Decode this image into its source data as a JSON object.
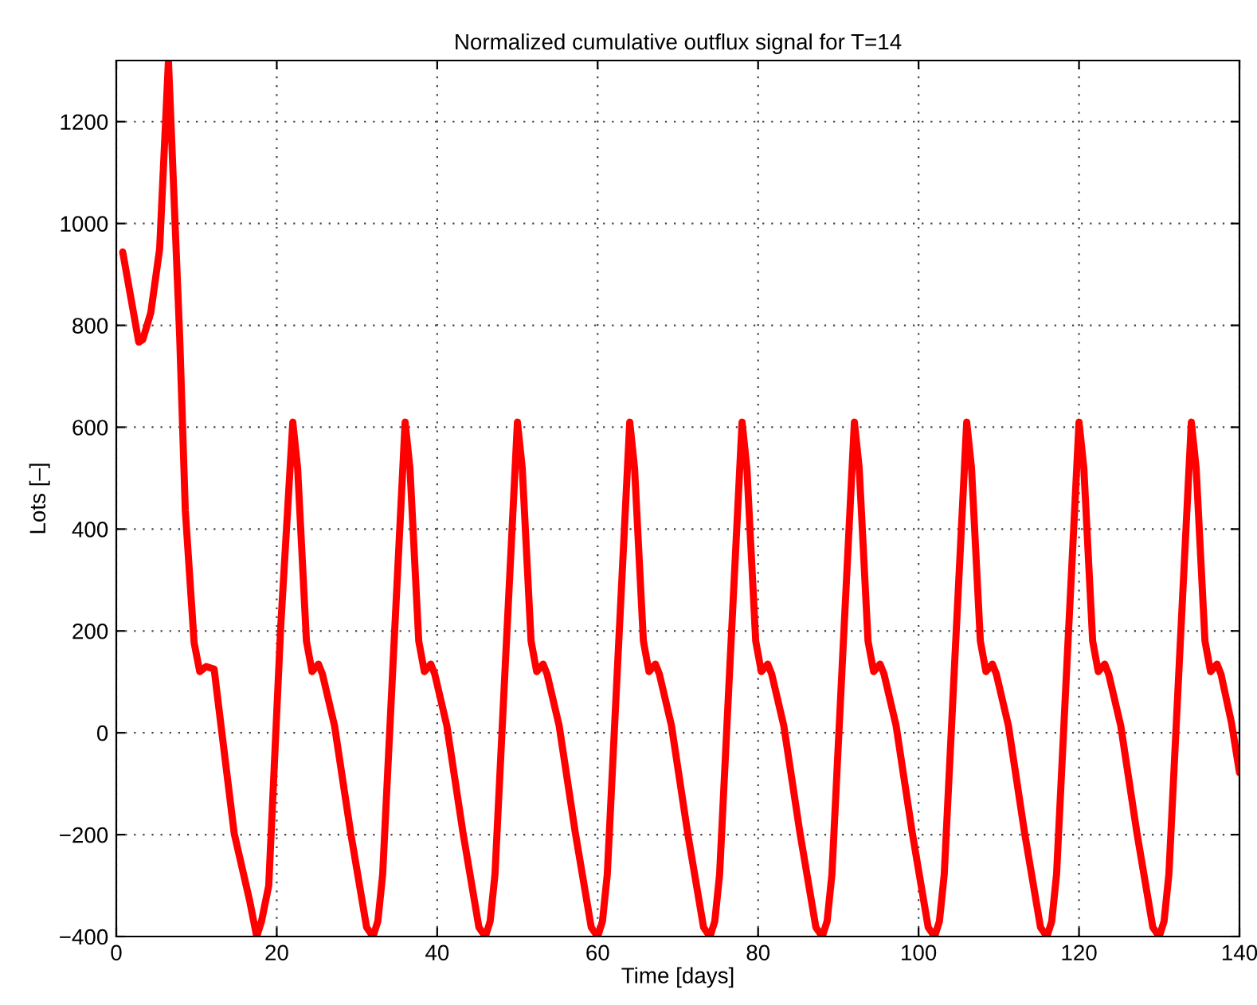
{
  "chart_data": {
    "type": "line",
    "title": "Normalized cumulative outflux signal for T=14",
    "xlabel": "Time [days]",
    "ylabel": "Lots [–]",
    "series": [
      {
        "color": "#ff0000",
        "x": [
          0.8,
          2.8,
          3.3,
          4.3,
          5.4,
          6.5,
          7.9,
          8.6,
          9.7,
          10.4,
          11.2,
          12.2,
          12.5,
          14.7,
          16.6,
          17.5,
          18.1,
          19,
          20.5,
          22,
          22.6,
          23.7,
          24.4,
          25.2,
          25.7,
          27.2,
          29.2,
          31.2,
          32,
          32.6,
          33.2,
          34.5,
          36,
          36.6,
          37.7,
          38.4,
          39.2,
          39.7,
          41.2,
          43.2,
          45.2,
          46,
          46.6,
          47.2,
          48.5,
          50,
          50.6,
          51.7,
          52.4,
          53.2,
          53.7,
          55.2,
          57.2,
          59.2,
          60,
          60.6,
          61.2,
          62.5,
          64,
          64.6,
          65.7,
          66.4,
          67.2,
          67.7,
          69.2,
          71.2,
          73.2,
          74,
          74.6,
          75.2,
          76.5,
          78,
          78.6,
          79.7,
          80.4,
          81.2,
          81.7,
          83.2,
          85.2,
          87.2,
          88,
          88.6,
          89.2,
          90.5,
          92,
          92.6,
          93.7,
          94.4,
          95.2,
          95.7,
          97.2,
          99.2,
          101.2,
          102,
          102.6,
          103.2,
          104.5,
          106,
          106.6,
          107.7,
          108.4,
          109.2,
          109.7,
          111.2,
          113.2,
          115.2,
          116,
          116.6,
          117.2,
          118.5,
          120,
          120.6,
          121.7,
          122.4,
          123.2,
          123.7,
          125.2,
          127.2,
          129.2,
          130,
          130.6,
          131.2,
          132.5,
          134,
          134.6,
          135.7,
          136.4,
          137.2,
          137.7,
          139,
          140
        ],
        "values": [
          944,
          767,
          772,
          825,
          950,
          1320,
          778,
          437,
          177,
          120,
          130,
          125,
          85,
          -198,
          -328,
          -400,
          -370,
          -300,
          210,
          610,
          520,
          180,
          120,
          135,
          115,
          14,
          -195,
          -382,
          -400,
          -370,
          -278,
          138,
          610,
          520,
          180,
          120,
          135,
          115,
          14,
          -195,
          -382,
          -400,
          -370,
          -278,
          138,
          610,
          520,
          180,
          120,
          135,
          115,
          14,
          -195,
          -382,
          -400,
          -370,
          -278,
          138,
          610,
          520,
          180,
          120,
          135,
          115,
          14,
          -195,
          -382,
          -400,
          -370,
          -278,
          138,
          610,
          520,
          180,
          120,
          135,
          115,
          14,
          -195,
          -382,
          -400,
          -370,
          -278,
          138,
          610,
          520,
          180,
          120,
          135,
          115,
          14,
          -195,
          -382,
          -400,
          -370,
          -278,
          138,
          610,
          520,
          180,
          120,
          135,
          115,
          14,
          -195,
          -382,
          -400,
          -370,
          -278,
          138,
          610,
          520,
          180,
          120,
          135,
          115,
          14,
          -195,
          -382,
          -400,
          -370,
          -278,
          138,
          610,
          520,
          180,
          120,
          135,
          115,
          20,
          -78
        ]
      }
    ],
    "xlim": [
      0,
      140
    ],
    "xticks": [
      0,
      20,
      40,
      60,
      80,
      100,
      120,
      140
    ],
    "ylim": [
      -400,
      1320
    ],
    "yticks": [
      {
        "value": -400,
        "label": "−400"
      },
      {
        "value": -200,
        "label": "−200"
      },
      0,
      200,
      400,
      600,
      800,
      1000,
      1200
    ],
    "grid": true,
    "marker": "none",
    "line_style": "solid"
  }
}
